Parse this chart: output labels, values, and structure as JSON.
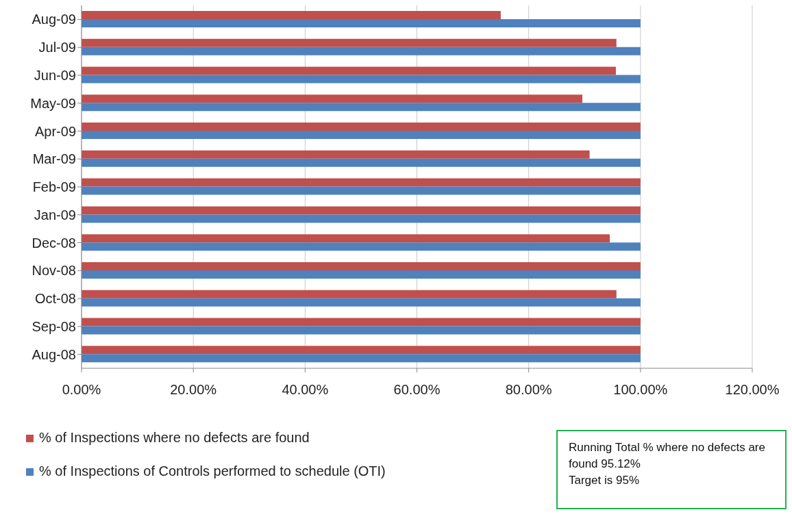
{
  "chart_data": {
    "type": "bar",
    "orientation": "horizontal",
    "categories": [
      "Aug-09",
      "Jul-09",
      "Jun-09",
      "May-09",
      "Apr-09",
      "Mar-09",
      "Feb-09",
      "Jan-09",
      "Dec-08",
      "Nov-08",
      "Oct-08",
      "Sep-08",
      "Aug-08"
    ],
    "series": [
      {
        "name": "% of Inspections where no defects are found",
        "color": "#c0504d",
        "values": [
          75.0,
          95.7,
          95.6,
          89.6,
          100,
          90.9,
          100,
          100,
          94.5,
          100,
          95.7,
          100,
          100
        ]
      },
      {
        "name": "% of Inspections of Controls performed to schedule (OTI)",
        "color": "#4f81bd",
        "values": [
          100,
          100,
          100,
          100,
          100,
          100,
          100,
          100,
          100,
          100,
          100,
          100,
          100
        ]
      }
    ],
    "xlim": [
      0,
      120
    ],
    "xticks": [
      {
        "value": 0,
        "label": "0.00%"
      },
      {
        "value": 20,
        "label": "20.00%"
      },
      {
        "value": 40,
        "label": "40.00%"
      },
      {
        "value": 60,
        "label": "60.00%"
      },
      {
        "value": 80,
        "label": "80.00%"
      },
      {
        "value": 100,
        "label": "100.00%"
      },
      {
        "value": 120,
        "label": "120.00%"
      }
    ],
    "grid": "x",
    "legend": "bottom left",
    "annotations": [
      "Running Total % where no defects are found 95.12%",
      "Target is 95%"
    ]
  }
}
